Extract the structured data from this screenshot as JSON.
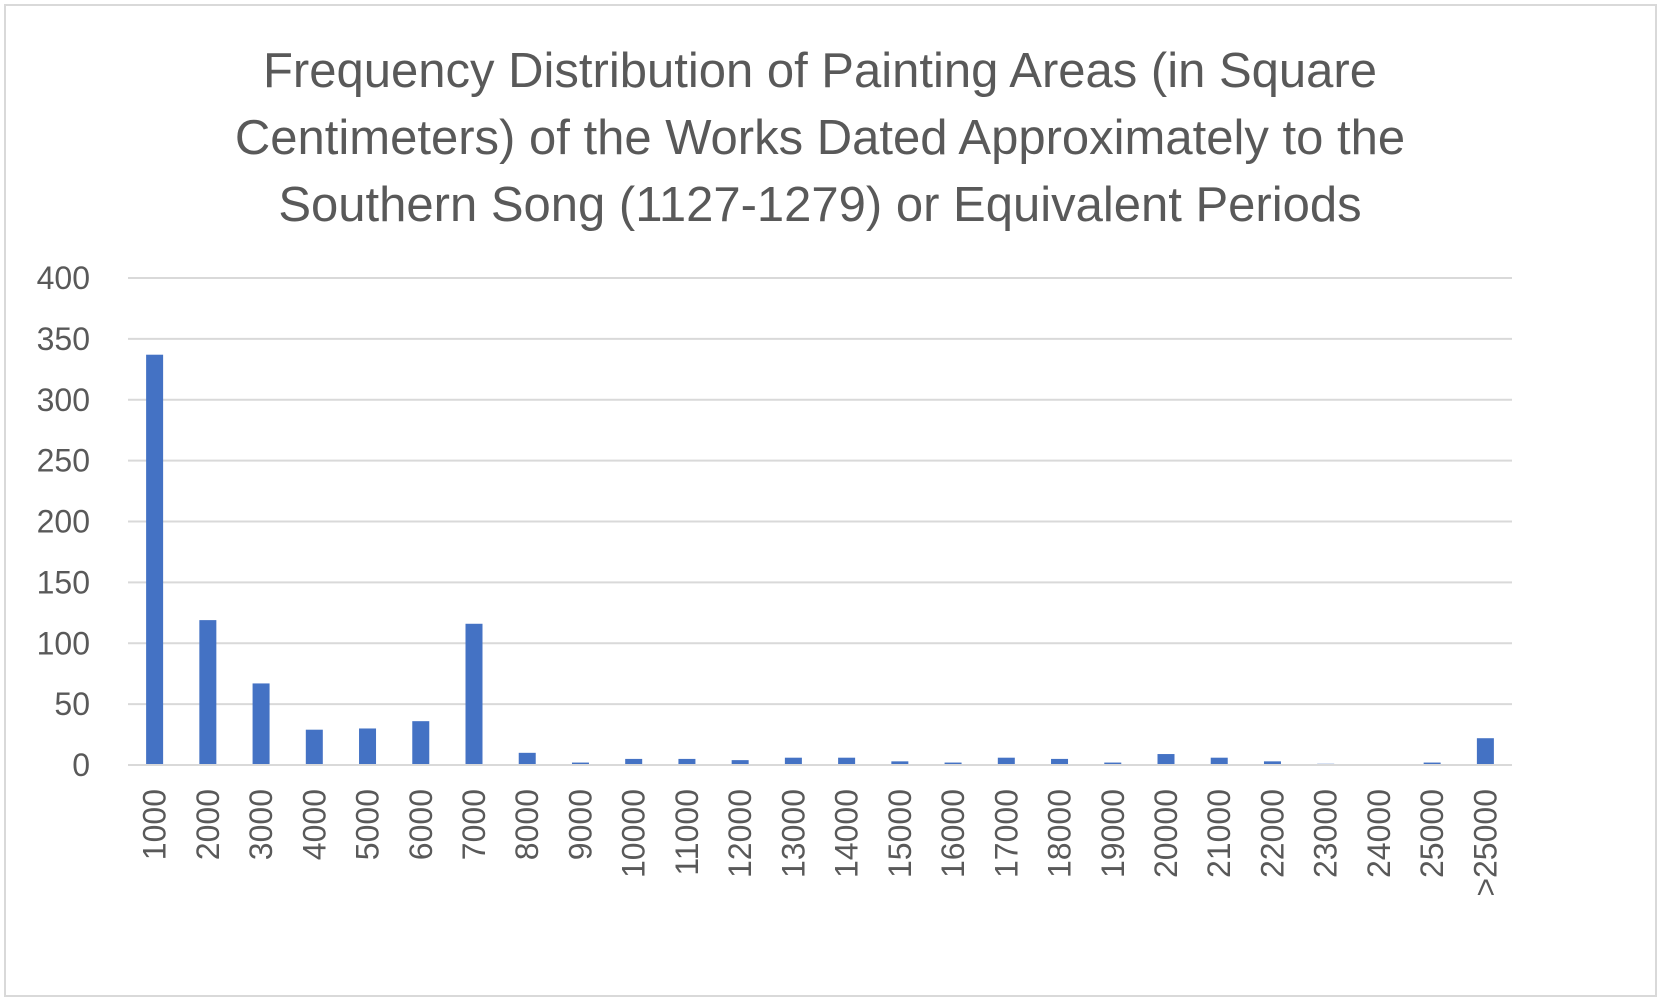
{
  "chart_data": {
    "type": "bar",
    "title_lines": [
      "Frequency Distribution of Painting Areas (in Square",
      "Centimeters) of the Works Dated Approximately to the",
      "Southern Song (1127-1279) or Equivalent Periods"
    ],
    "categories": [
      "1000",
      "2000",
      "3000",
      "4000",
      "5000",
      "6000",
      "7000",
      "8000",
      "9000",
      "10000",
      "11000",
      "12000",
      "13000",
      "14000",
      "15000",
      "16000",
      "17000",
      "18000",
      "19000",
      "20000",
      "21000",
      "22000",
      "23000",
      "24000",
      "25000",
      ">25000"
    ],
    "values": [
      337,
      119,
      67,
      29,
      30,
      36,
      116,
      10,
      2,
      5,
      5,
      4,
      6,
      6,
      3,
      2,
      6,
      5,
      2,
      9,
      6,
      3,
      1,
      0,
      2,
      22
    ],
    "ylim": [
      0,
      400
    ],
    "yticks": [
      0,
      50,
      100,
      150,
      200,
      250,
      300,
      350,
      400
    ],
    "grid": true,
    "legend": "none",
    "bar_color": "#4472c4",
    "grid_color": "#d9d9d9",
    "axis_color": "#d9d9d9",
    "text_color": "#595959"
  }
}
